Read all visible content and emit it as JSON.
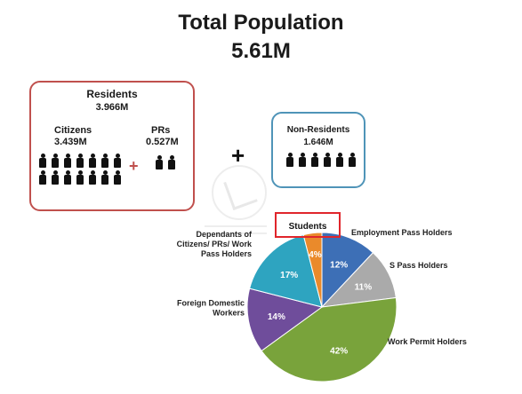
{
  "header": {
    "title": "Total Population",
    "total": "5.61M"
  },
  "residents": {
    "title": "Residents",
    "value": "3.966M",
    "citizens_label": "Citizens",
    "citizens_value": "3.439M",
    "prs_label": "PRs",
    "prs_value": "0.527M",
    "inner_plus": "+",
    "citizen_icon_count": 14,
    "pr_icon_count": 2
  },
  "outer_plus": "+",
  "non_residents": {
    "title": "Non-Residents",
    "value": "1.646M",
    "icon_count": 6
  },
  "colors": {
    "residents_border": "#c0504d",
    "non_residents_border": "#4f94b8",
    "plus_red": "#c0504d",
    "students_border": "#e0252b"
  },
  "chart_data": {
    "type": "pie",
    "title": "",
    "highlight_label": "Students",
    "slices": [
      {
        "label": "Employment Pass Holders",
        "value": 12,
        "display": "12%",
        "color": "#3d6fb6"
      },
      {
        "label": "S Pass Holders",
        "value": 11,
        "display": "11%",
        "color": "#aaaaaa"
      },
      {
        "label": "Work Permit Holders",
        "value": 42,
        "display": "42%",
        "color": "#79a33b"
      },
      {
        "label": "Foreign Domestic Workers",
        "value": 14,
        "display": "14%",
        "color": "#6f4d9b"
      },
      {
        "label": "Dependants of Citizens/ PRs/ Work Pass Holders",
        "value": 17,
        "display": "17%",
        "color": "#2ea4c0"
      },
      {
        "label": "Students",
        "value": 4,
        "display": "4%",
        "color": "#ea8a2b"
      }
    ]
  }
}
